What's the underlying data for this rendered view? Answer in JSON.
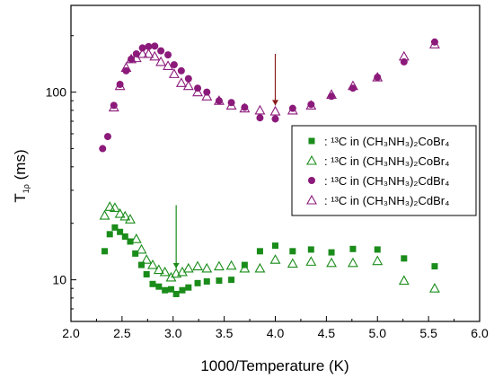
{
  "chart_data": {
    "type": "scatter",
    "xlabel": "1000/Temperature (K)",
    "ylabel": "T1ρ (ms)",
    "ylabel_main": "T",
    "ylabel_sub": "1ρ",
    "ylabel_unit": " (ms)",
    "xlim": [
      2.0,
      6.0
    ],
    "ylim": [
      6.0,
      290
    ],
    "yscale": "log",
    "xticks": [
      {
        "value": 2.0,
        "label": "2.0"
      },
      {
        "value": 2.5,
        "label": "2.5"
      },
      {
        "value": 3.0,
        "label": "3.0"
      },
      {
        "value": 3.5,
        "label": "3.5"
      },
      {
        "value": 4.0,
        "label": "4.0"
      },
      {
        "value": 4.5,
        "label": "4.5"
      },
      {
        "value": 5.0,
        "label": "5.0"
      },
      {
        "value": 5.5,
        "label": "5.5"
      },
      {
        "value": 6.0,
        "label": "6.0"
      }
    ],
    "yticks": [
      {
        "value": 10,
        "label": "10"
      },
      {
        "value": 100,
        "label": "100"
      }
    ],
    "grid": false,
    "legend_position": "right",
    "series": [
      {
        "legend": ": ¹³C in (CH₃NH₃)₂CoBr₄",
        "marker": "square-filled",
        "color": "#1a8c1a",
        "x": [
          2.33,
          2.38,
          2.43,
          2.48,
          2.53,
          2.58,
          2.63,
          2.69,
          2.74,
          2.8,
          2.86,
          2.92,
          2.98,
          3.03,
          3.09,
          3.15,
          3.24,
          3.33,
          3.45,
          3.57,
          3.7,
          3.85,
          4.0,
          4.17,
          4.35,
          4.55,
          4.76,
          5.0,
          5.26,
          5.56
        ],
        "y": [
          14.2,
          17.5,
          19.0,
          18.0,
          17.0,
          16.0,
          13.8,
          12.0,
          10.7,
          9.5,
          9.2,
          8.8,
          8.9,
          8.4,
          8.8,
          9.1,
          9.6,
          9.8,
          9.9,
          10.0,
          12.0,
          14.2,
          15.2,
          14.2,
          14.5,
          14.0,
          14.6,
          14.5,
          13.0,
          11.8
        ]
      },
      {
        "legend": ": ¹³C in (CH₃NH₃)₂CoBr₄",
        "marker": "triangle-open",
        "color": "#1a8c1a",
        "x": [
          2.33,
          2.38,
          2.43,
          2.48,
          2.53,
          2.58,
          2.64,
          2.69,
          2.74,
          2.8,
          2.86,
          2.92,
          2.98,
          3.03,
          3.09,
          3.15,
          3.24,
          3.33,
          3.45,
          3.57,
          3.7,
          3.85,
          4.0,
          4.17,
          4.35,
          4.55,
          4.76,
          5.0,
          5.26,
          5.56
        ],
        "y": [
          22.0,
          24.5,
          24.2,
          22.5,
          21.8,
          21.0,
          16.5,
          14.5,
          12.8,
          12.0,
          11.3,
          11.0,
          10.3,
          10.8,
          11.0,
          11.5,
          11.8,
          11.5,
          11.8,
          11.9,
          11.5,
          11.5,
          12.8,
          12.2,
          12.5,
          12.3,
          12.3,
          12.6,
          9.9,
          9.0
        ]
      },
      {
        "legend": ": ¹³C in (CH₃NH₃)₂CdBr₄",
        "marker": "circle-filled",
        "color": "#8b1a7a",
        "x": [
          2.31,
          2.36,
          2.42,
          2.48,
          2.54,
          2.59,
          2.64,
          2.7,
          2.76,
          2.82,
          2.88,
          2.95,
          3.01,
          3.08,
          3.15,
          3.24,
          3.33,
          3.45,
          3.57,
          3.7,
          3.85,
          4.0,
          4.17,
          4.35,
          4.55,
          4.76,
          5.0,
          5.26,
          5.56
        ],
        "y": [
          50,
          58,
          85,
          110,
          130,
          150,
          160,
          172,
          175,
          176,
          166,
          158,
          140,
          130,
          118,
          105,
          100,
          90,
          88,
          83,
          73,
          72,
          82,
          86,
          95,
          105,
          120,
          145,
          185
        ]
      },
      {
        "legend": ": ¹³C in (CH₃NH₃)₂CdBr₄",
        "marker": "triangle-open",
        "color": "#8b1a7a",
        "x": [
          2.42,
          2.48,
          2.54,
          2.59,
          2.64,
          2.7,
          2.76,
          2.82,
          2.88,
          2.95,
          3.01,
          3.08,
          3.15,
          3.24,
          3.33,
          3.45,
          3.57,
          3.7,
          3.85,
          4.0,
          4.17,
          4.35,
          4.55,
          4.76,
          5.0,
          5.26,
          5.56
        ],
        "y": [
          83,
          108,
          135,
          150,
          152,
          160,
          160,
          155,
          145,
          138,
          125,
          112,
          108,
          100,
          95,
          90,
          85,
          82,
          80,
          79,
          80,
          85,
          97,
          108,
          120,
          155,
          180
        ]
      }
    ],
    "annotations": [
      {
        "type": "arrow-down",
        "color": "#8b1a1a",
        "x": 4.0,
        "y_from": 160,
        "y_to": 85
      },
      {
        "type": "arrow-down",
        "color": "#1a8c1a",
        "x": 3.03,
        "y_from": 25,
        "y_to": 11.5
      }
    ]
  }
}
